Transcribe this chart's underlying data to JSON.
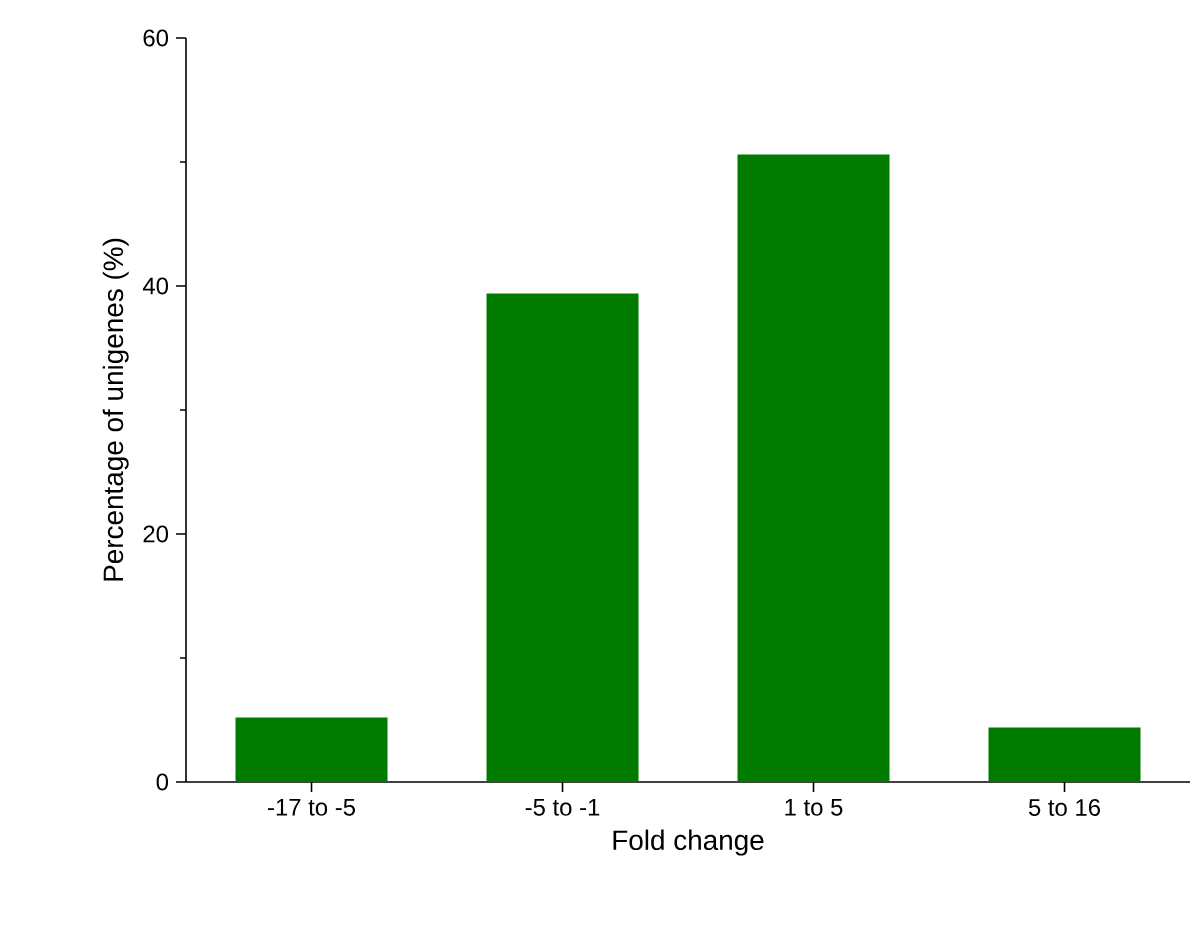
{
  "chart_data": {
    "type": "bar",
    "xlabel": "Fold change",
    "ylabel": "Percentage of unigenes (%)",
    "categories": [
      "-17  to -5",
      "-5 to -1",
      "1 to 5",
      "5 to 16"
    ],
    "values": [
      5.2,
      39.4,
      50.6,
      4.4
    ],
    "color": "#007b00",
    "ylim": [
      0,
      60
    ],
    "yticks": [
      0,
      20,
      40,
      60
    ],
    "grid": false
  }
}
